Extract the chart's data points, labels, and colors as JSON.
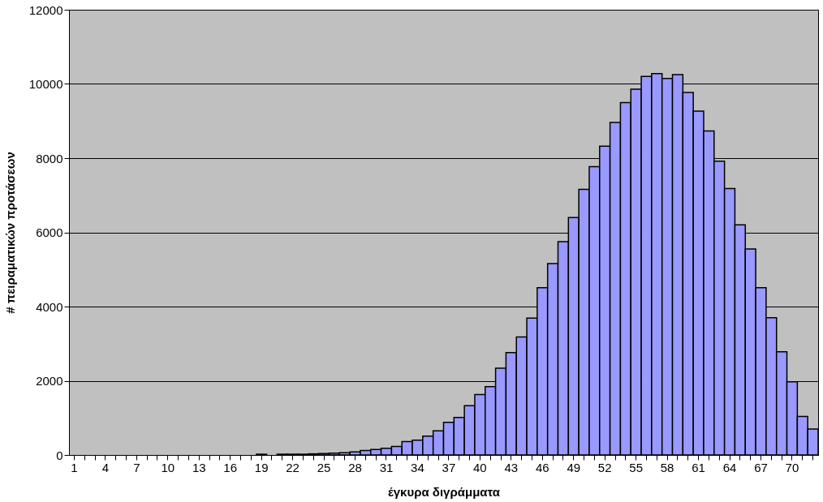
{
  "chart_data": {
    "type": "bar",
    "xlabel": "έγκυρα διγράμματα",
    "ylabel": "# πειραματικών προτάσεων",
    "categories": [
      "1",
      null,
      null,
      "4",
      null,
      null,
      "7",
      null,
      null,
      "10",
      null,
      null,
      "13",
      null,
      null,
      "16",
      null,
      null,
      "19",
      null,
      null,
      "22",
      null,
      null,
      "25",
      null,
      null,
      "28",
      null,
      null,
      "31",
      null,
      null,
      "34",
      null,
      null,
      "37",
      null,
      null,
      "40",
      null,
      null,
      "43",
      null,
      null,
      "46",
      null,
      null,
      "49",
      null,
      null,
      "52",
      null,
      null,
      "55",
      null,
      null,
      "58",
      null,
      null,
      "61",
      null,
      null,
      "64",
      null,
      null,
      "67",
      null,
      null,
      "70",
      null,
      null
    ],
    "series": [
      {
        "color": "#9999ff",
        "values": [
          null,
          null,
          null,
          null,
          null,
          null,
          null,
          null,
          null,
          null,
          null,
          null,
          null,
          null,
          null,
          null,
          null,
          null,
          20,
          null,
          20,
          20,
          20,
          30,
          40,
          50,
          60,
          80,
          120,
          150,
          180,
          230,
          360,
          400,
          510,
          650,
          880,
          1010,
          1330,
          1630,
          1840,
          2340,
          2760,
          3180,
          3690,
          4510,
          5160,
          5750,
          6400,
          7160,
          7770,
          8320,
          8960,
          9500,
          9860,
          10200,
          10280,
          10150,
          10250,
          9770,
          9270,
          8730,
          7920,
          7180,
          6200,
          5550,
          4510,
          3700,
          2780,
          1970,
          1040,
          700
        ]
      }
    ],
    "ylim": [
      0,
      12000
    ],
    "yticks": [
      0,
      2000,
      4000,
      6000,
      8000,
      10000,
      12000
    ],
    "grid": "y",
    "legend": false
  }
}
